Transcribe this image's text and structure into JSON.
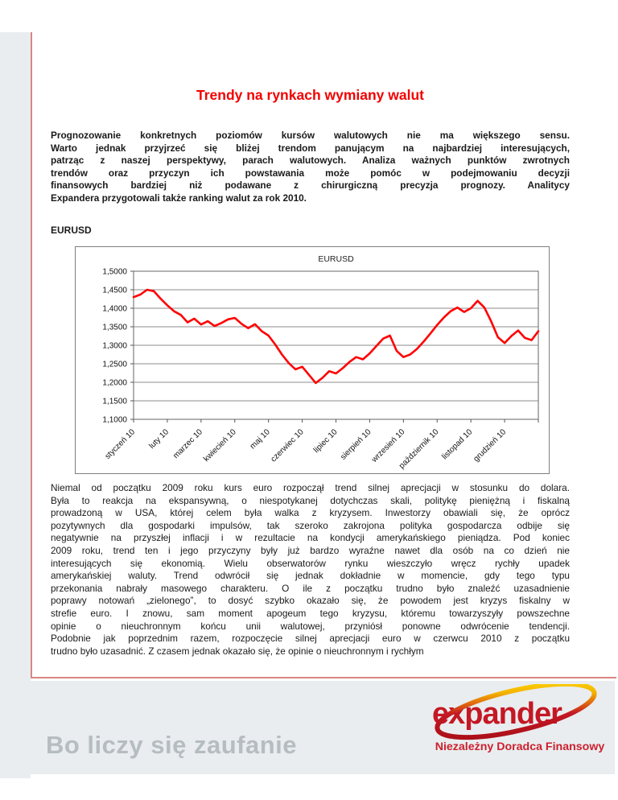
{
  "page": {
    "title": "Trendy na rynkach wymiany walut",
    "section_label": "EURUSD",
    "intro_lines": [
      "Prognozowanie konkretnych poziomów kursów walutowych nie ma większego sensu.",
      "Warto jednak przyjrzeć się bliżej trendom panującym na najbardziej interesujących,",
      "patrząc z naszej perspektywy, parach walutowych. Analiza ważnych punktów zwrotnych",
      "trendów oraz przyczyn ich powstawania może pomóc w podejmowaniu decyzji",
      "finansowych bardziej niż podawane z chirurgiczną precyzja prognozy. Analitycy",
      "Expandera przygotowali także ranking walut za rok 2010."
    ],
    "body_lines": [
      "Niemal od początku 2009 roku kurs euro rozpoczął trend silnej aprecjacji w stosunku do dolara.",
      "Była to reakcja na ekspansywną, o niespotykanej dotychczas skali, politykę pieniężną i fiskalną",
      "prowadzoną w USA, której celem była walka z kryzysem. Inwestorzy obawiali się, że oprócz",
      "pozytywnych dla gospodarki impulsów, tak szeroko zakrojona polityka gospodarcza odbije się",
      "negatywnie na przyszłej inflacji i w rezultacie na kondycji amerykańskiego pieniądza. Pod koniec",
      "2009 roku, trend ten i jego przyczyny były już bardzo wyraźne nawet dla osób na co dzień nie",
      "interesujących się ekonomią. Wielu obserwatorów rynku wieszczyło wręcz rychły upadek",
      "amerykańskiej waluty. Trend odwrócił się jednak dokładnie w momencie, gdy tego typu",
      "przekonania nabrały masowego charakteru. O ile z początku trudno było znaleźć uzasadnienie",
      "poprawy notowań „zielonego”, to dosyć szybko okazało się, że powodem jest kryzys fiskalny w",
      "strefie euro. I znowu, sam moment apogeum tego kryzysu, któremu towarzyszyły powszechne",
      "opinie o nieuchronnym końcu unii walutowej, przyniósł ponowne odwrócenie tendencji.",
      "Podobnie jak poprzednim razem, rozpoczęcie silnej aprecjacji euro w czerwcu 2010 z początku",
      "trudno było uzasadnić. Z czasem jednak okazało się, że opinie o nieuchronnym i rychłym"
    ]
  },
  "footer": {
    "slogan": "Bo liczy się zaufanie",
    "logo_text": "expander",
    "tagline": "Niezależny Doradca Finansowy"
  },
  "colors": {
    "title_red": "#f20000",
    "accent_line_pink": "#d98585",
    "band_gray": "#e9edef",
    "slogan_gray": "#b6bdc1",
    "logo_red": "#c41824",
    "tagline_red": "#cc1f2d",
    "chart_line_red": "#ff0000",
    "grid_gray": "#8c8c8c"
  },
  "chart_data": {
    "type": "line",
    "title": "EURUSD",
    "series_name": "EURUSD",
    "x_tick_labels": [
      "styczeń 10",
      "luty 10",
      "marzec 10",
      "kwiecień 10",
      "maj 10",
      "czerwiec 10",
      "lipiec 10",
      "sierpień 10",
      "wrzesień 10",
      "październik 10",
      "listopad 10",
      "grudzień 10"
    ],
    "y_tick_labels": [
      "1,1000",
      "1,1500",
      "1,2000",
      "1,2500",
      "1,3000",
      "1,3500",
      "1,4000",
      "1,4500",
      "1,5000"
    ],
    "ylim": [
      1.1,
      1.5
    ],
    "y_step": 0.05,
    "grid": "horizontal",
    "legend": "none",
    "line_color": "#ff0000",
    "values": [
      1.43,
      1.437,
      1.45,
      1.446,
      1.426,
      1.408,
      1.392,
      1.382,
      1.362,
      1.372,
      1.356,
      1.365,
      1.352,
      1.36,
      1.37,
      1.374,
      1.358,
      1.346,
      1.357,
      1.338,
      1.326,
      1.302,
      1.275,
      1.252,
      1.235,
      1.242,
      1.22,
      1.198,
      1.212,
      1.23,
      1.224,
      1.238,
      1.255,
      1.268,
      1.262,
      1.278,
      1.298,
      1.318,
      1.326,
      1.285,
      1.268,
      1.275,
      1.29,
      1.31,
      1.332,
      1.355,
      1.375,
      1.392,
      1.402,
      1.39,
      1.4,
      1.42,
      1.402,
      1.365,
      1.322,
      1.306,
      1.325,
      1.34,
      1.32,
      1.314,
      1.338
    ]
  }
}
